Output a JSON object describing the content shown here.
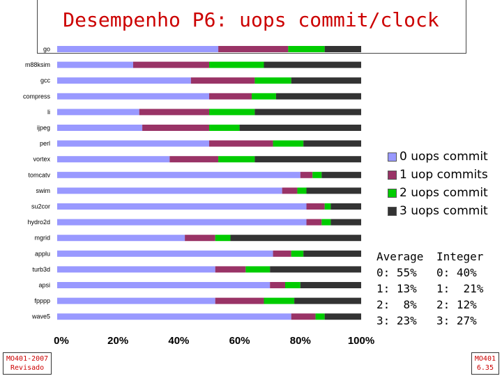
{
  "title": "Desempenho P6: uops commit/clock",
  "chart_data": {
    "type": "bar",
    "orientation": "horizontal",
    "stacked": true,
    "categories": [
      "go",
      "m88ksim",
      "gcc",
      "compress",
      "li",
      "ijpeg",
      "perl",
      "vortex",
      "tomcatv",
      "swim",
      "su2cor",
      "hydro2d",
      "mgrid",
      "applu",
      "turb3d",
      "apsi",
      "fpppp",
      "wave5"
    ],
    "series": [
      {
        "name": "0 uops commit",
        "color": "#9999ff",
        "values": [
          53,
          25,
          44,
          50,
          27,
          28,
          50,
          37,
          80,
          74,
          82,
          82,
          42,
          71,
          52,
          70,
          52,
          77
        ]
      },
      {
        "name": "1 uop commits",
        "color": "#993366",
        "values": [
          23,
          25,
          21,
          14,
          23,
          22,
          21,
          16,
          4,
          5,
          6,
          5,
          10,
          6,
          10,
          5,
          16,
          8
        ]
      },
      {
        "name": "2 uops commit",
        "color": "#00cc00",
        "values": [
          12,
          18,
          12,
          8,
          15,
          10,
          10,
          12,
          3,
          3,
          2,
          3,
          5,
          4,
          8,
          5,
          10,
          3
        ]
      },
      {
        "name": "3 uops commit",
        "color": "#333333",
        "values": [
          12,
          32,
          23,
          28,
          35,
          40,
          19,
          35,
          13,
          18,
          10,
          10,
          43,
          19,
          30,
          20,
          22,
          12
        ]
      }
    ],
    "xlim": [
      0,
      100
    ],
    "xticks": [
      "0%",
      "20%",
      "40%",
      "60%",
      "80%",
      "100%"
    ],
    "xlabel": "",
    "ylabel": "",
    "legend_position": "right"
  },
  "legend": [
    "0 uops commit",
    "1 uop commits",
    "2 uops commit",
    "3 uops commit"
  ],
  "averages": {
    "floating": {
      "header": "Average",
      "lines": [
        "0: 55%",
        "1: 13%",
        "2:  8%",
        "3: 23%"
      ]
    },
    "integer": {
      "header": "Integer",
      "lines": [
        "0: 40%",
        "1:  21%",
        "2: 12%",
        "3: 27%"
      ]
    }
  },
  "footer": {
    "left": [
      "MO401-2007",
      "Revisado"
    ],
    "right": [
      "MO401",
      "6.35"
    ]
  }
}
